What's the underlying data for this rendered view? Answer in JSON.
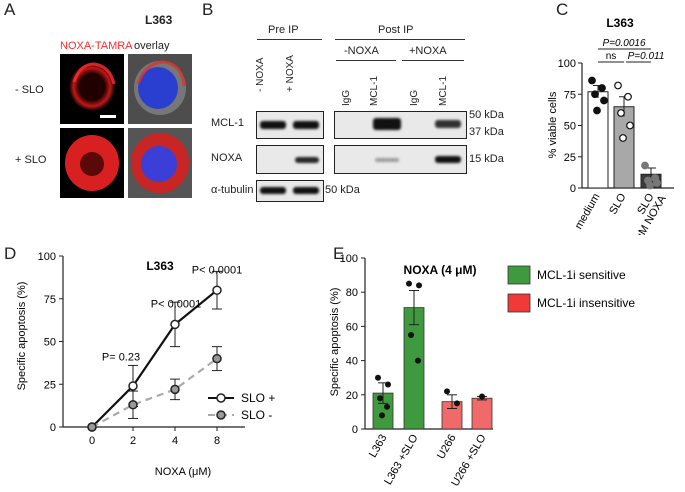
{
  "panel_letters": [
    "A",
    "B",
    "C",
    "D",
    "E"
  ],
  "panelA": {
    "title": "L363",
    "col_left": "NOXA-TAMRA",
    "col_right": "overlay",
    "row_top": "- SLO",
    "row_bottom": "+ SLO",
    "colors": {
      "tamra": "#ff3b30",
      "dapi": "#3a55ff"
    }
  },
  "panelB": {
    "pre_ip": "Pre IP",
    "post_ip": "Post IP",
    "minus_noxa_group": "-NOXA",
    "plus_noxa_group": "+NOXA",
    "lane_labels": [
      "- NOXA",
      "+ NOXA",
      "IgG",
      "MCL-1",
      "IgG",
      "MCL-1"
    ],
    "row_labels": [
      "MCL-1",
      "NOXA",
      "α-tubulin"
    ],
    "markers": [
      "50 kDa",
      "37 kDa",
      "15 kDa",
      "50 kDa"
    ]
  },
  "chart_data": [
    {
      "panel": "C",
      "type": "bar",
      "title": "L363",
      "ylabel": "% viable cells",
      "categories": [
        "medium",
        "SLO",
        "SLO\n+8 μM NOXA"
      ],
      "values": [
        77,
        65,
        11
      ],
      "errors": [
        5,
        8,
        5
      ],
      "ylim": [
        0,
        100
      ],
      "yticks": [
        0,
        25,
        50,
        75,
        100
      ],
      "points": [
        [
          86,
          80,
          75,
          70,
          62
        ],
        [
          82,
          73,
          60,
          50,
          40
        ],
        [
          18,
          8,
          6,
          4,
          2
        ]
      ],
      "bar_colors": [
        "#ffffff",
        "#a8a8a8",
        "#3a3a3a"
      ],
      "annotations": [
        "P=0.0016",
        "ns",
        "P=0.011"
      ]
    },
    {
      "panel": "D",
      "type": "line",
      "title": "L363",
      "xlabel": "NOXA (μM)",
      "ylabel": "Specific apoptosis (%)",
      "x": [
        0,
        2,
        4,
        8
      ],
      "ylim": [
        0,
        100
      ],
      "yticks": [
        0,
        25,
        50,
        75,
        100
      ],
      "series": [
        {
          "name": "SLO +",
          "values": [
            0,
            24,
            60,
            80
          ],
          "errors": [
            0,
            12,
            13,
            11
          ]
        },
        {
          "name": "SLO -",
          "values": [
            0,
            13,
            22,
            40
          ],
          "errors": [
            0,
            8,
            6,
            7
          ]
        }
      ],
      "annotations": [
        "P= 0.23",
        "P< 0.0001",
        "P< 0.0001"
      ]
    },
    {
      "panel": "E",
      "type": "bar",
      "title": "NOXA (4 μM)",
      "ylabel": "Specific apoptosis (%)",
      "categories": [
        "L363",
        "L363 +SLO",
        "U266",
        "U266 +SLO"
      ],
      "values": [
        21,
        71,
        16,
        18
      ],
      "errors": [
        6,
        10,
        4,
        1
      ],
      "ylim": [
        0,
        100
      ],
      "yticks": [
        0,
        20,
        40,
        60,
        80,
        100
      ],
      "points": [
        [
          30,
          26,
          18,
          13,
          8
        ],
        [
          85,
          84,
          55,
          40
        ],
        [
          22,
          15
        ],
        [
          19
        ]
      ],
      "bar_colors": [
        "#3f9a3f",
        "#3f9a3f",
        "#f06a6a",
        "#f06a6a"
      ],
      "legend": [
        {
          "name": "MCL-1i sensitive",
          "color": "#3f9a3f"
        },
        {
          "name": "MCL-1i insensitive",
          "color": "#f03a3a"
        }
      ]
    }
  ]
}
